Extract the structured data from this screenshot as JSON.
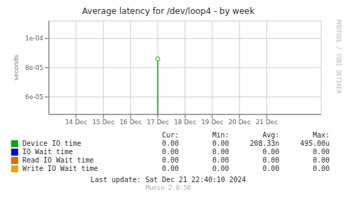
{
  "chart_data": {
    "type": "bar",
    "title": "Average latency for /dev/loop4 - by week",
    "ylabel": "seconds",
    "x": [
      1734220800
    ],
    "xlim": [
      1733875200,
      1734739200
    ],
    "xticks": [
      {
        "value": 1733961600,
        "label": "14 Dec"
      },
      {
        "value": 1734048000,
        "label": "15 Dec"
      },
      {
        "value": 1734134400,
        "label": "16 Dec"
      },
      {
        "value": 1734220800,
        "label": "17 Dec"
      },
      {
        "value": 1734307200,
        "label": "18 Dec"
      },
      {
        "value": 1734393600,
        "label": "19 Dec"
      },
      {
        "value": 1734480000,
        "label": "20 Dec"
      },
      {
        "value": 1734566400,
        "label": "21 Dec"
      }
    ],
    "ylim": [
      4.8e-05,
      0.000112
    ],
    "yticks": [
      {
        "value": 6e-05,
        "label": "6e-05"
      },
      {
        "value": 8e-05,
        "label": "8e-05"
      },
      {
        "value": 0.0001,
        "label": "1e-04"
      }
    ],
    "grid": true,
    "legend": "bottom",
    "stats_headers": [
      "Cur:",
      "Min:",
      "Avg:",
      "Max:"
    ],
    "series": [
      {
        "name": "Device IO time",
        "color": "#00aa00",
        "values": [
          8.6e-05
        ],
        "stats": [
          "0.00",
          "0.00",
          "208.33n",
          "495.00u"
        ]
      },
      {
        "name": "IO Wait time",
        "color": "#0000ee",
        "values": [
          null
        ],
        "stats": [
          "0.00",
          "0.00",
          "0.00",
          "0.00"
        ]
      },
      {
        "name": "Read IO Wait time",
        "color": "#ee6600",
        "values": [
          null
        ],
        "stats": [
          "0.00",
          "0.00",
          "0.00",
          "0.00"
        ]
      },
      {
        "name": "Write IO Wait time",
        "color": "#ddaa00",
        "values": [
          null
        ],
        "stats": [
          "0.00",
          "0.00",
          "0.00",
          "0.00"
        ]
      }
    ],
    "annotations": [
      "Last update: Sat Dec 21 22:40:10 2024",
      "Munin 2.0.56",
      "RRDTOOL / TOBI OETIKER"
    ]
  }
}
